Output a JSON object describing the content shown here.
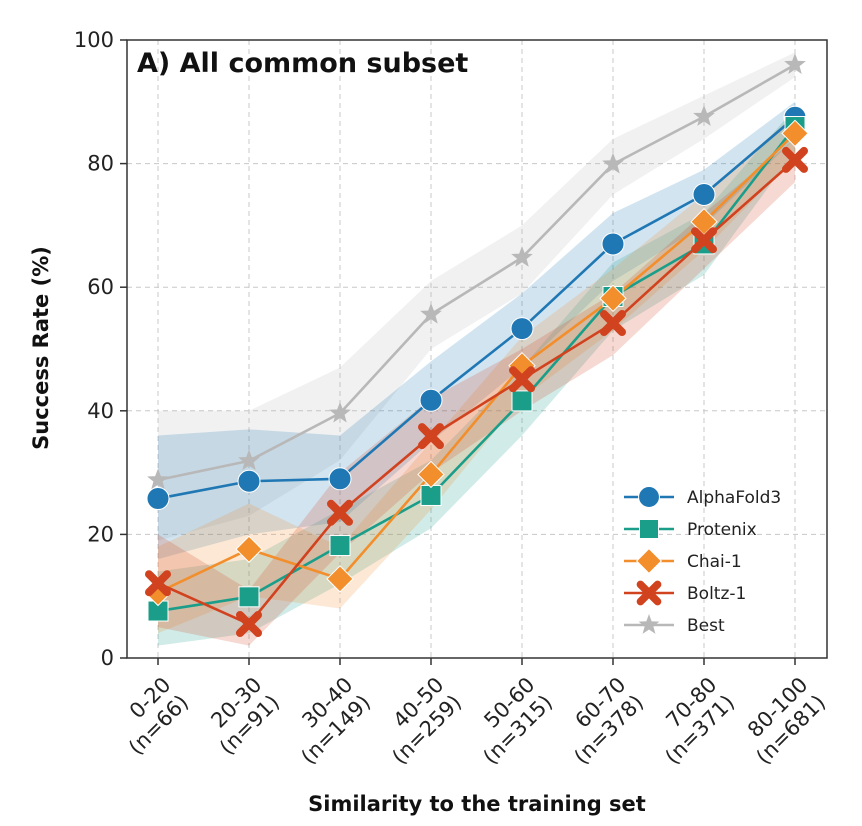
{
  "chart_data": {
    "type": "line",
    "title": "A) All common subset",
    "xlabel": "Similarity to the training set",
    "ylabel": "Success Rate (%)",
    "ylim": [
      0,
      100
    ],
    "yticks": [
      "0",
      "20",
      "40",
      "60",
      "80",
      "100"
    ],
    "grid": true,
    "legend_position": "lower-right",
    "categories": [
      [
        "0-20",
        "(n=66)"
      ],
      [
        "20-30",
        "(n=91)"
      ],
      [
        "30-40",
        "(n=149)"
      ],
      [
        "40-50",
        "(n=259)"
      ],
      [
        "50-60",
        "(n=315)"
      ],
      [
        "60-70",
        "(n=378)"
      ],
      [
        "70-80",
        "(n=371)"
      ],
      [
        "80-100",
        "(n=681)"
      ]
    ],
    "series": [
      {
        "name": "AlphaFold3",
        "color": "#1f77b4",
        "marker": "circle",
        "values": [
          25.8,
          28.6,
          29.0,
          41.7,
          53.3,
          67.0,
          75.0,
          87.5
        ],
        "lower": [
          16,
          20,
          22,
          35,
          47,
          61,
          70,
          84
        ],
        "upper": [
          36,
          37,
          36,
          48,
          59,
          72,
          79,
          90
        ]
      },
      {
        "name": "Protenix",
        "color": "#1a9e8a",
        "marker": "square",
        "values": [
          7.6,
          9.9,
          18.2,
          26.3,
          41.6,
          58.5,
          67.0,
          86.0
        ],
        "lower": [
          2,
          4,
          12,
          21,
          36,
          53,
          62,
          82
        ],
        "upper": [
          14,
          16,
          24,
          32,
          47,
          64,
          72,
          89
        ]
      },
      {
        "name": "Chai-1",
        "color": "#f28e2b",
        "marker": "diamond",
        "values": [
          10.6,
          17.6,
          12.8,
          29.7,
          47.3,
          58.2,
          70.6,
          84.9
        ],
        "lower": [
          4,
          10,
          8,
          24,
          42,
          53,
          66,
          81
        ],
        "upper": [
          18,
          25,
          18,
          35,
          52,
          63,
          75,
          88
        ]
      },
      {
        "name": "Boltz-1",
        "color": "#d1421f",
        "marker": "x",
        "values": [
          12.1,
          5.5,
          23.5,
          35.9,
          45.1,
          54.2,
          67.6,
          80.6
        ],
        "lower": [
          5,
          2,
          17,
          30,
          40,
          49,
          63,
          77
        ],
        "upper": [
          20,
          11,
          30,
          42,
          50,
          59,
          72,
          84
        ]
      },
      {
        "name": "Best",
        "color": "#b8b8b8",
        "marker": "star",
        "values": [
          28.8,
          31.9,
          39.6,
          55.6,
          64.8,
          79.9,
          87.6,
          96.0
        ],
        "lower": [
          19,
          23,
          32,
          50,
          59,
          75,
          84,
          94
        ],
        "upper": [
          40,
          40,
          47,
          61,
          70,
          84,
          91,
          98
        ]
      }
    ]
  }
}
